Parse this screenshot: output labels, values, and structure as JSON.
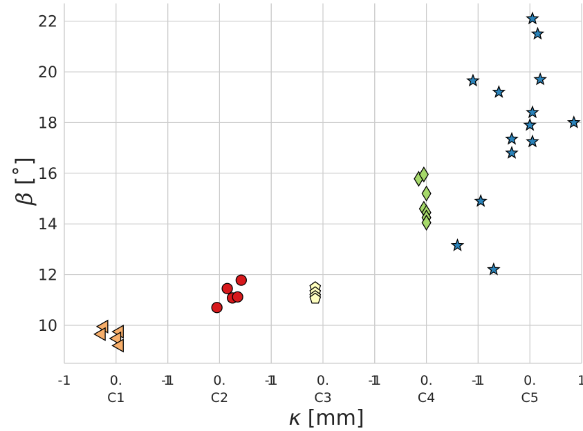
{
  "chart_data": {
    "type": "scatter",
    "title": "",
    "xlabel_symbol": "κ",
    "xlabel_unit": "[mm]",
    "ylabel_symbol": "β",
    "ylabel_unit": "[˚]",
    "ylim": [
      8.5,
      22.7
    ],
    "yticks": [
      10,
      12,
      14,
      16,
      18,
      20,
      22
    ],
    "grid": true,
    "subplot_xlim": [
      -1,
      1
    ],
    "subplot_tick_labels": [
      "-1",
      "0.",
      "1"
    ],
    "groups": [
      "C1",
      "C2",
      "C3",
      "C4",
      "C5"
    ],
    "series": [
      {
        "group": "C1",
        "marker": "triangle-left",
        "color": "#f7ae6a",
        "points": [
          [
            -0.25,
            9.95
          ],
          [
            -0.3,
            9.65
          ],
          [
            0.05,
            9.75
          ],
          [
            0.0,
            9.48
          ],
          [
            0.05,
            9.2
          ]
        ]
      },
      {
        "group": "C2",
        "marker": "circle",
        "color": "#d7191c",
        "points": [
          [
            -0.05,
            10.7
          ],
          [
            0.15,
            11.45
          ],
          [
            0.25,
            11.08
          ],
          [
            0.35,
            11.12
          ],
          [
            0.42,
            11.78
          ]
        ]
      },
      {
        "group": "C3",
        "marker": "pentagon",
        "color": "#ffffbf",
        "points": [
          [
            -0.15,
            11.5
          ],
          [
            -0.15,
            11.3
          ],
          [
            -0.15,
            11.15
          ],
          [
            -0.15,
            11.05
          ]
        ]
      },
      {
        "group": "C4",
        "marker": "diamond",
        "color": "#a6d96a",
        "points": [
          [
            -0.15,
            15.78
          ],
          [
            -0.05,
            15.95
          ],
          [
            0.0,
            15.2
          ],
          [
            -0.05,
            14.6
          ],
          [
            0.0,
            14.45
          ],
          [
            0.0,
            14.25
          ],
          [
            0.0,
            14.05
          ]
        ]
      },
      {
        "group": "C5",
        "marker": "star",
        "color": "#2b83ba",
        "points": [
          [
            0.05,
            22.1
          ],
          [
            0.15,
            21.5
          ],
          [
            -1.1,
            19.65
          ],
          [
            -0.6,
            19.2
          ],
          [
            0.2,
            19.7
          ],
          [
            0.05,
            18.4
          ],
          [
            0.0,
            17.9
          ],
          [
            0.85,
            18.0
          ],
          [
            -0.35,
            17.35
          ],
          [
            0.05,
            17.25
          ],
          [
            -0.35,
            16.8
          ],
          [
            -0.95,
            14.9
          ],
          [
            -1.4,
            13.15
          ],
          [
            -0.7,
            12.2
          ]
        ]
      }
    ]
  }
}
